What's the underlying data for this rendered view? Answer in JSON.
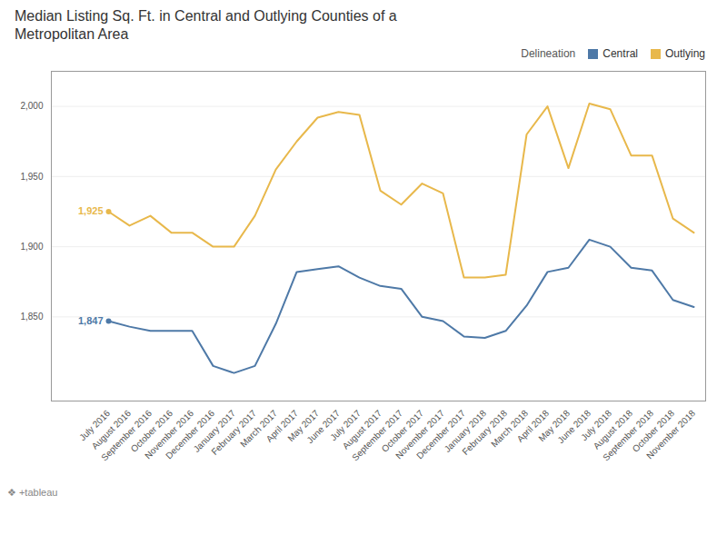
{
  "chart_data": {
    "type": "line",
    "title": "Median Listing Sq. Ft. in Central and Outlying Counties of a\nMetropolitan Area",
    "caption": "❖ +tableau",
    "categories": [
      "July 2016",
      "August 2016",
      "September 2016",
      "October 2016",
      "November 2016",
      "December 2016",
      "January 2017",
      "February 2017",
      "March 2017",
      "April 2017",
      "May 2017",
      "June 2017",
      "July 2017",
      "August 2017",
      "September 2017",
      "October 2017",
      "November 2017",
      "December 2017",
      "January 2018",
      "February 2018",
      "March 2018",
      "April 2018",
      "May 2018",
      "June 2018",
      "July 2018",
      "August 2018",
      "September 2018",
      "October 2018",
      "November 2018"
    ],
    "series": [
      {
        "name": "Central",
        "color": "#4e79a7",
        "values": [
          1847,
          1843,
          1840,
          1840,
          1840,
          1815,
          1810,
          1815,
          1845,
          1882,
          1884,
          1886,
          1878,
          1872,
          1870,
          1850,
          1847,
          1836,
          1835,
          1840,
          1858,
          1882,
          1885,
          1905,
          1900,
          1885,
          1883,
          1862,
          1857
        ]
      },
      {
        "name": "Outlying",
        "color": "#e8b84b",
        "values": [
          1925,
          1915,
          1922,
          1910,
          1910,
          1900,
          1900,
          1922,
          1955,
          1975,
          1992,
          1996,
          1994,
          1940,
          1930,
          1945,
          1938,
          1878,
          1878,
          1880,
          1980,
          2000,
          1956,
          2002,
          1998,
          1965,
          1965,
          1920,
          1910
        ]
      }
    ],
    "annotations": [
      {
        "text": "1,847",
        "x": "July 2016",
        "y": 1847,
        "color": "#4e79a7"
      },
      {
        "text": "1,925",
        "x": "July 2016",
        "y": 1925,
        "color": "#e8b84b"
      }
    ],
    "legend_title": "Delineation",
    "legend": "upper right",
    "ylim": [
      1790,
      2025
    ],
    "yticks": [
      {
        "value": 1850,
        "label": "1,850"
      },
      {
        "value": 1900,
        "label": "1,900"
      },
      {
        "value": 1950,
        "label": "1,950"
      },
      {
        "value": 2000,
        "label": "2,000"
      }
    ],
    "grid": true
  }
}
